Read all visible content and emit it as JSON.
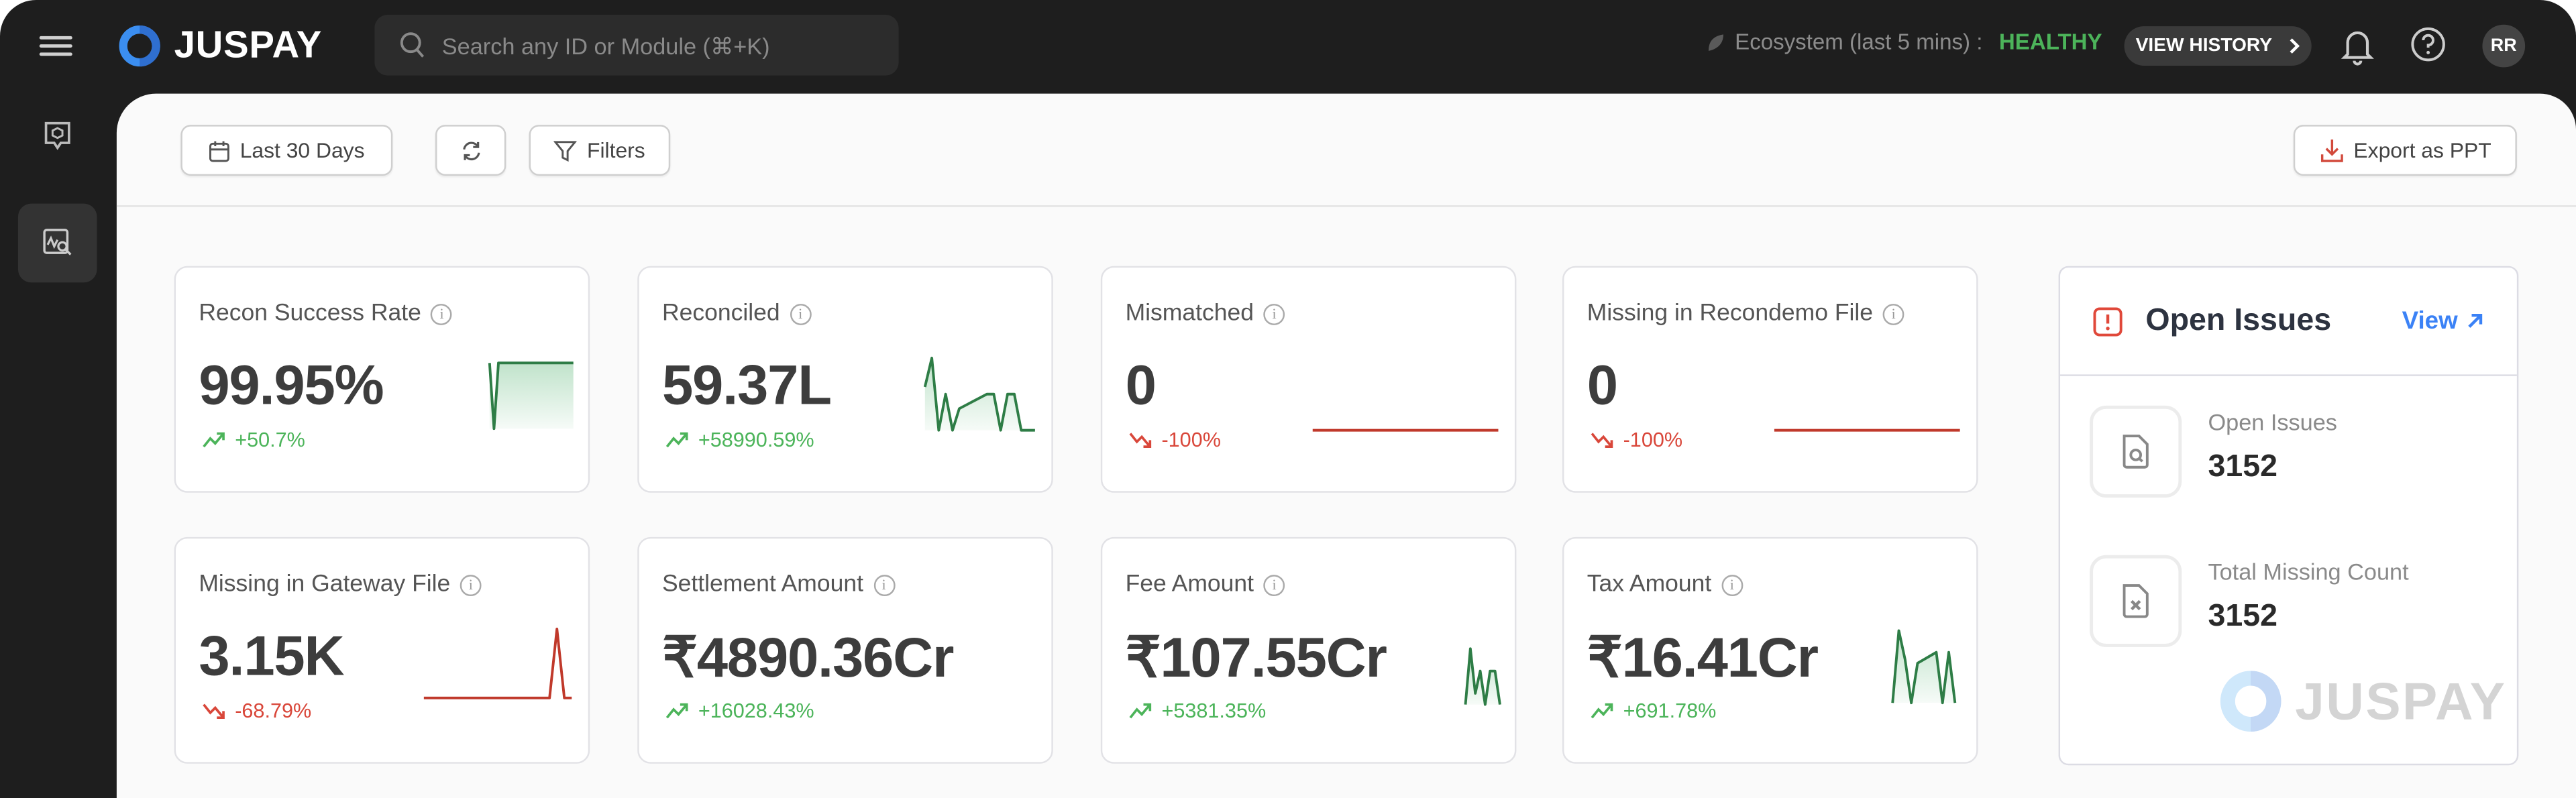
{
  "header": {
    "brand": "JUSPAY",
    "search_placeholder": "Search any ID or Module (⌘+K)",
    "ecosystem_label": "Ecosystem (last 5 mins) :",
    "ecosystem_status": "HEALTHY",
    "view_history": "VIEW HISTORY",
    "avatar_initials": "RR"
  },
  "toolbar": {
    "date_range": "Last 30 Days",
    "filters": "Filters",
    "export": "Export as PPT"
  },
  "colors": {
    "up": "#4cb45a",
    "down": "#d9473a",
    "spark_green": "#2e7d46",
    "spark_red": "#c0392b",
    "link": "#3b82f6"
  },
  "cards": [
    {
      "title": "Recon Success Rate",
      "value": "99.95%",
      "change": "+50.7%",
      "trend": "up",
      "spark_color": "green",
      "spark": [
        100,
        0,
        100,
        100,
        100,
        100,
        100,
        100,
        100,
        100,
        100,
        100,
        100,
        100,
        100,
        100,
        100,
        100,
        100,
        100
      ]
    },
    {
      "title": "Reconciled",
      "value": "59.37L",
      "change": "+58990.59%",
      "trend": "up",
      "spark_color": "green",
      "spark": [
        60,
        100,
        0,
        50,
        0,
        30,
        35,
        40,
        45,
        50,
        50,
        0,
        50,
        50,
        0,
        0,
        0
      ]
    },
    {
      "title": "Mismatched",
      "value": "0",
      "change": "-100%",
      "trend": "down",
      "spark_color": "red",
      "spark": [
        0,
        0,
        0,
        0,
        0,
        0,
        0,
        0,
        0,
        0
      ]
    },
    {
      "title": "Missing in Recondemo File",
      "value": "0",
      "change": "-100%",
      "trend": "down",
      "spark_color": "red",
      "spark": [
        0,
        0,
        0,
        0,
        0,
        0,
        0,
        0,
        0,
        0
      ]
    },
    {
      "title": "Missing in Gateway File",
      "value": "3.15K",
      "change": "-68.79%",
      "trend": "down",
      "spark_color": "red",
      "spark": [
        0,
        0,
        0,
        0,
        0,
        0,
        0,
        0,
        0,
        0,
        0,
        0,
        0,
        0,
        0,
        0,
        0,
        0,
        100,
        0,
        0
      ]
    },
    {
      "title": "Settlement Amount",
      "value": "₹4890.36Cr",
      "change": "+16028.43%",
      "trend": "up",
      "spark_color": "green",
      "spark": []
    },
    {
      "title": "Fee Amount",
      "value": "₹107.55Cr",
      "change": "+5381.35%",
      "trend": "up",
      "spark_color": "green",
      "spark": [
        0,
        100,
        20,
        60,
        0,
        60,
        60,
        0
      ]
    },
    {
      "title": "Tax Amount",
      "value": "₹16.41Cr",
      "change": "+691.78%",
      "trend": "up",
      "spark_color": "green",
      "spark": [
        0,
        100,
        60,
        0,
        55,
        60,
        65,
        70,
        0,
        70,
        0
      ]
    }
  ],
  "open_issues": {
    "title": "Open Issues",
    "view": "View",
    "items": [
      {
        "label": "Open Issues",
        "value": "3152"
      },
      {
        "label": "Total Missing Count",
        "value": "3152"
      }
    ],
    "watermark": "JUSPAY"
  }
}
